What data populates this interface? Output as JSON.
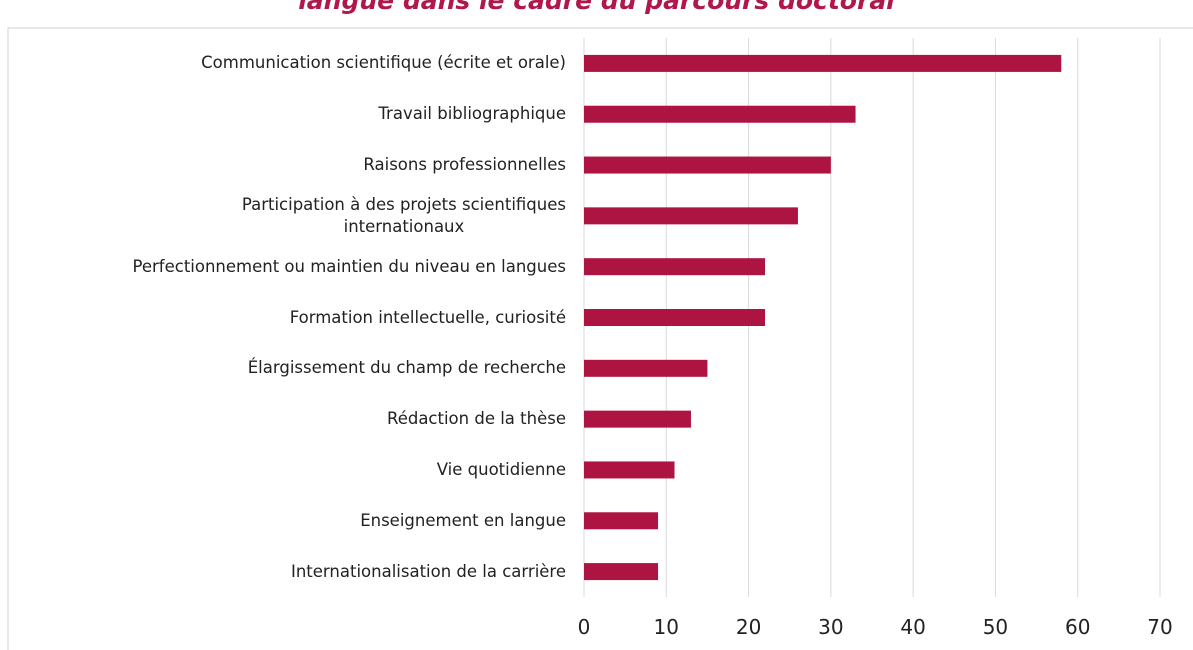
{
  "chart_data": {
    "type": "bar",
    "orientation": "horizontal",
    "title": "langue dans le cadre du parcours doctoral",
    "categories": [
      "Communication scientifique (écrite et orale)",
      "Travail bibliographique",
      "Raisons professionnelles",
      "Participation à des projets scientifiques\ninternationaux",
      "Perfectionnement ou maintien du niveau en langues",
      "Formation intellectuelle, curiosité",
      "Élargissement du champ de recherche",
      "Rédaction de la thèse",
      "Vie quotidienne",
      "Enseignement en langue",
      "Internationalisation de la carrière"
    ],
    "values": [
      58,
      33,
      30,
      26,
      22,
      22,
      15,
      13,
      11,
      9,
      9
    ],
    "color": "#ad1442",
    "xlim": [
      0,
      70
    ],
    "xticks": [
      0,
      10,
      20,
      30,
      40,
      50,
      60,
      70
    ],
    "grid": true
  }
}
